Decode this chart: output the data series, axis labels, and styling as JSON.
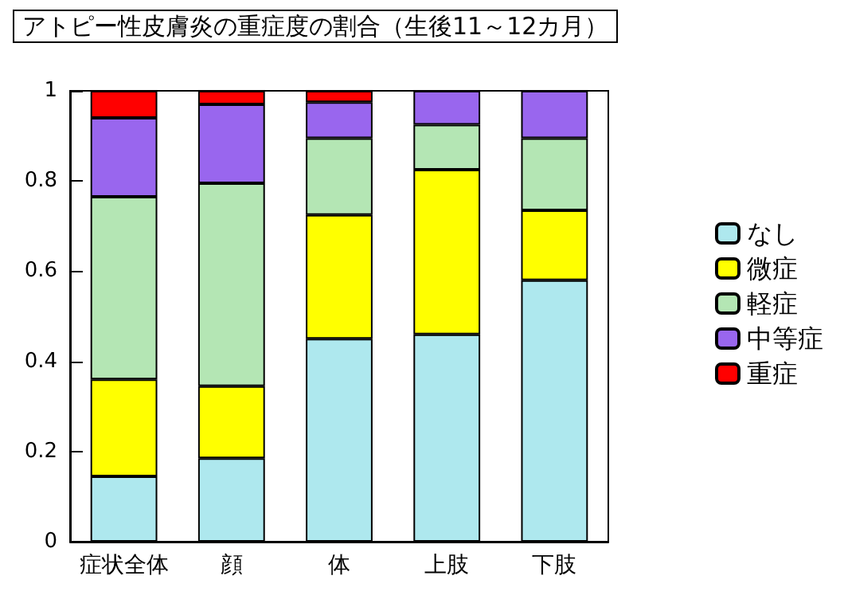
{
  "chart_data": {
    "type": "bar",
    "title": "アトピー性皮膚炎の重症度の割合（生後11～12カ月）",
    "categories": [
      "症状全体",
      "顔",
      "体",
      "上肢",
      "下肢"
    ],
    "stacked": true,
    "ylim": [
      0,
      1
    ],
    "yticks": [
      0,
      0.2,
      0.4,
      0.6,
      0.8,
      1
    ],
    "grid": false,
    "legend": "right",
    "series": [
      {
        "name": "なし",
        "color": "#aee8ee",
        "values": [
          0.145,
          0.185,
          0.45,
          0.46,
          0.58
        ]
      },
      {
        "name": "微症",
        "color": "#ffff00",
        "values": [
          0.215,
          0.16,
          0.275,
          0.365,
          0.155
        ]
      },
      {
        "name": "軽症",
        "color": "#b4e6b4",
        "values": [
          0.405,
          0.45,
          0.17,
          0.1,
          0.16
        ]
      },
      {
        "name": "中等症",
        "color": "#9966ee",
        "values": [
          0.175,
          0.175,
          0.08,
          0.075,
          0.105
        ]
      },
      {
        "name": "重症",
        "color": "#ff0000",
        "values": [
          0.06,
          0.03,
          0.025,
          0,
          0
        ]
      }
    ]
  }
}
